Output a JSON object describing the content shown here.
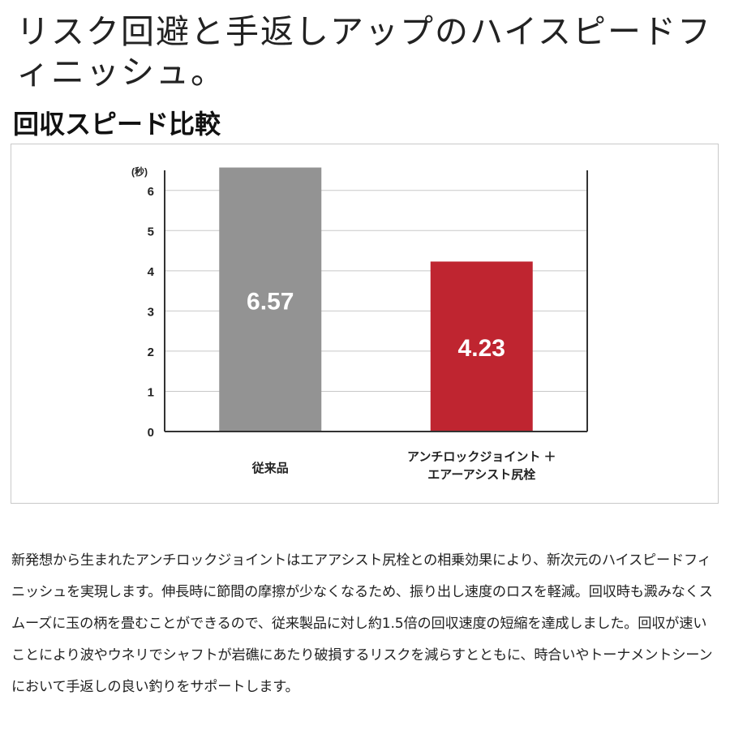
{
  "headline": "リスク回避と手返しアップのハイスピードフィニッシュ。",
  "section_title": "回収スピード比較",
  "chart_data": {
    "type": "bar",
    "title": "回収スピード比較",
    "ylabel": "(秒)",
    "xlabel": "",
    "ylim": [
      0,
      6.5
    ],
    "yticks": [
      0,
      1,
      2,
      3,
      4,
      5,
      6
    ],
    "categories": [
      [
        "従来品"
      ],
      [
        "アンチロックジョイント ＋",
        "エアーアシスト尻栓"
      ]
    ],
    "values": [
      6.57,
      4.23
    ],
    "data_labels": [
      "6.57",
      "4.23"
    ],
    "colors": [
      "#939393",
      "#bf2530"
    ],
    "grid": true,
    "legend": "none"
  },
  "body_text": "新発想から生まれたアンチロックジョイントはエアアシスト尻栓との相乗効果により、新次元のハイスピードフィニッシュを実現します。伸長時に節間の摩擦が少なくなるため、振り出し速度のロスを軽減。回収時も澱みなくスムーズに玉の柄を畳むことができるので、従来製品に対し約1.5倍の回収速度の短縮を達成しました。回収が速いことにより波やウネリでシャフトが岩礁にあたり破損するリスクを減らすとともに、時合いやトーナメントシーンにおいて手返しの良い釣りをサポートします。"
}
